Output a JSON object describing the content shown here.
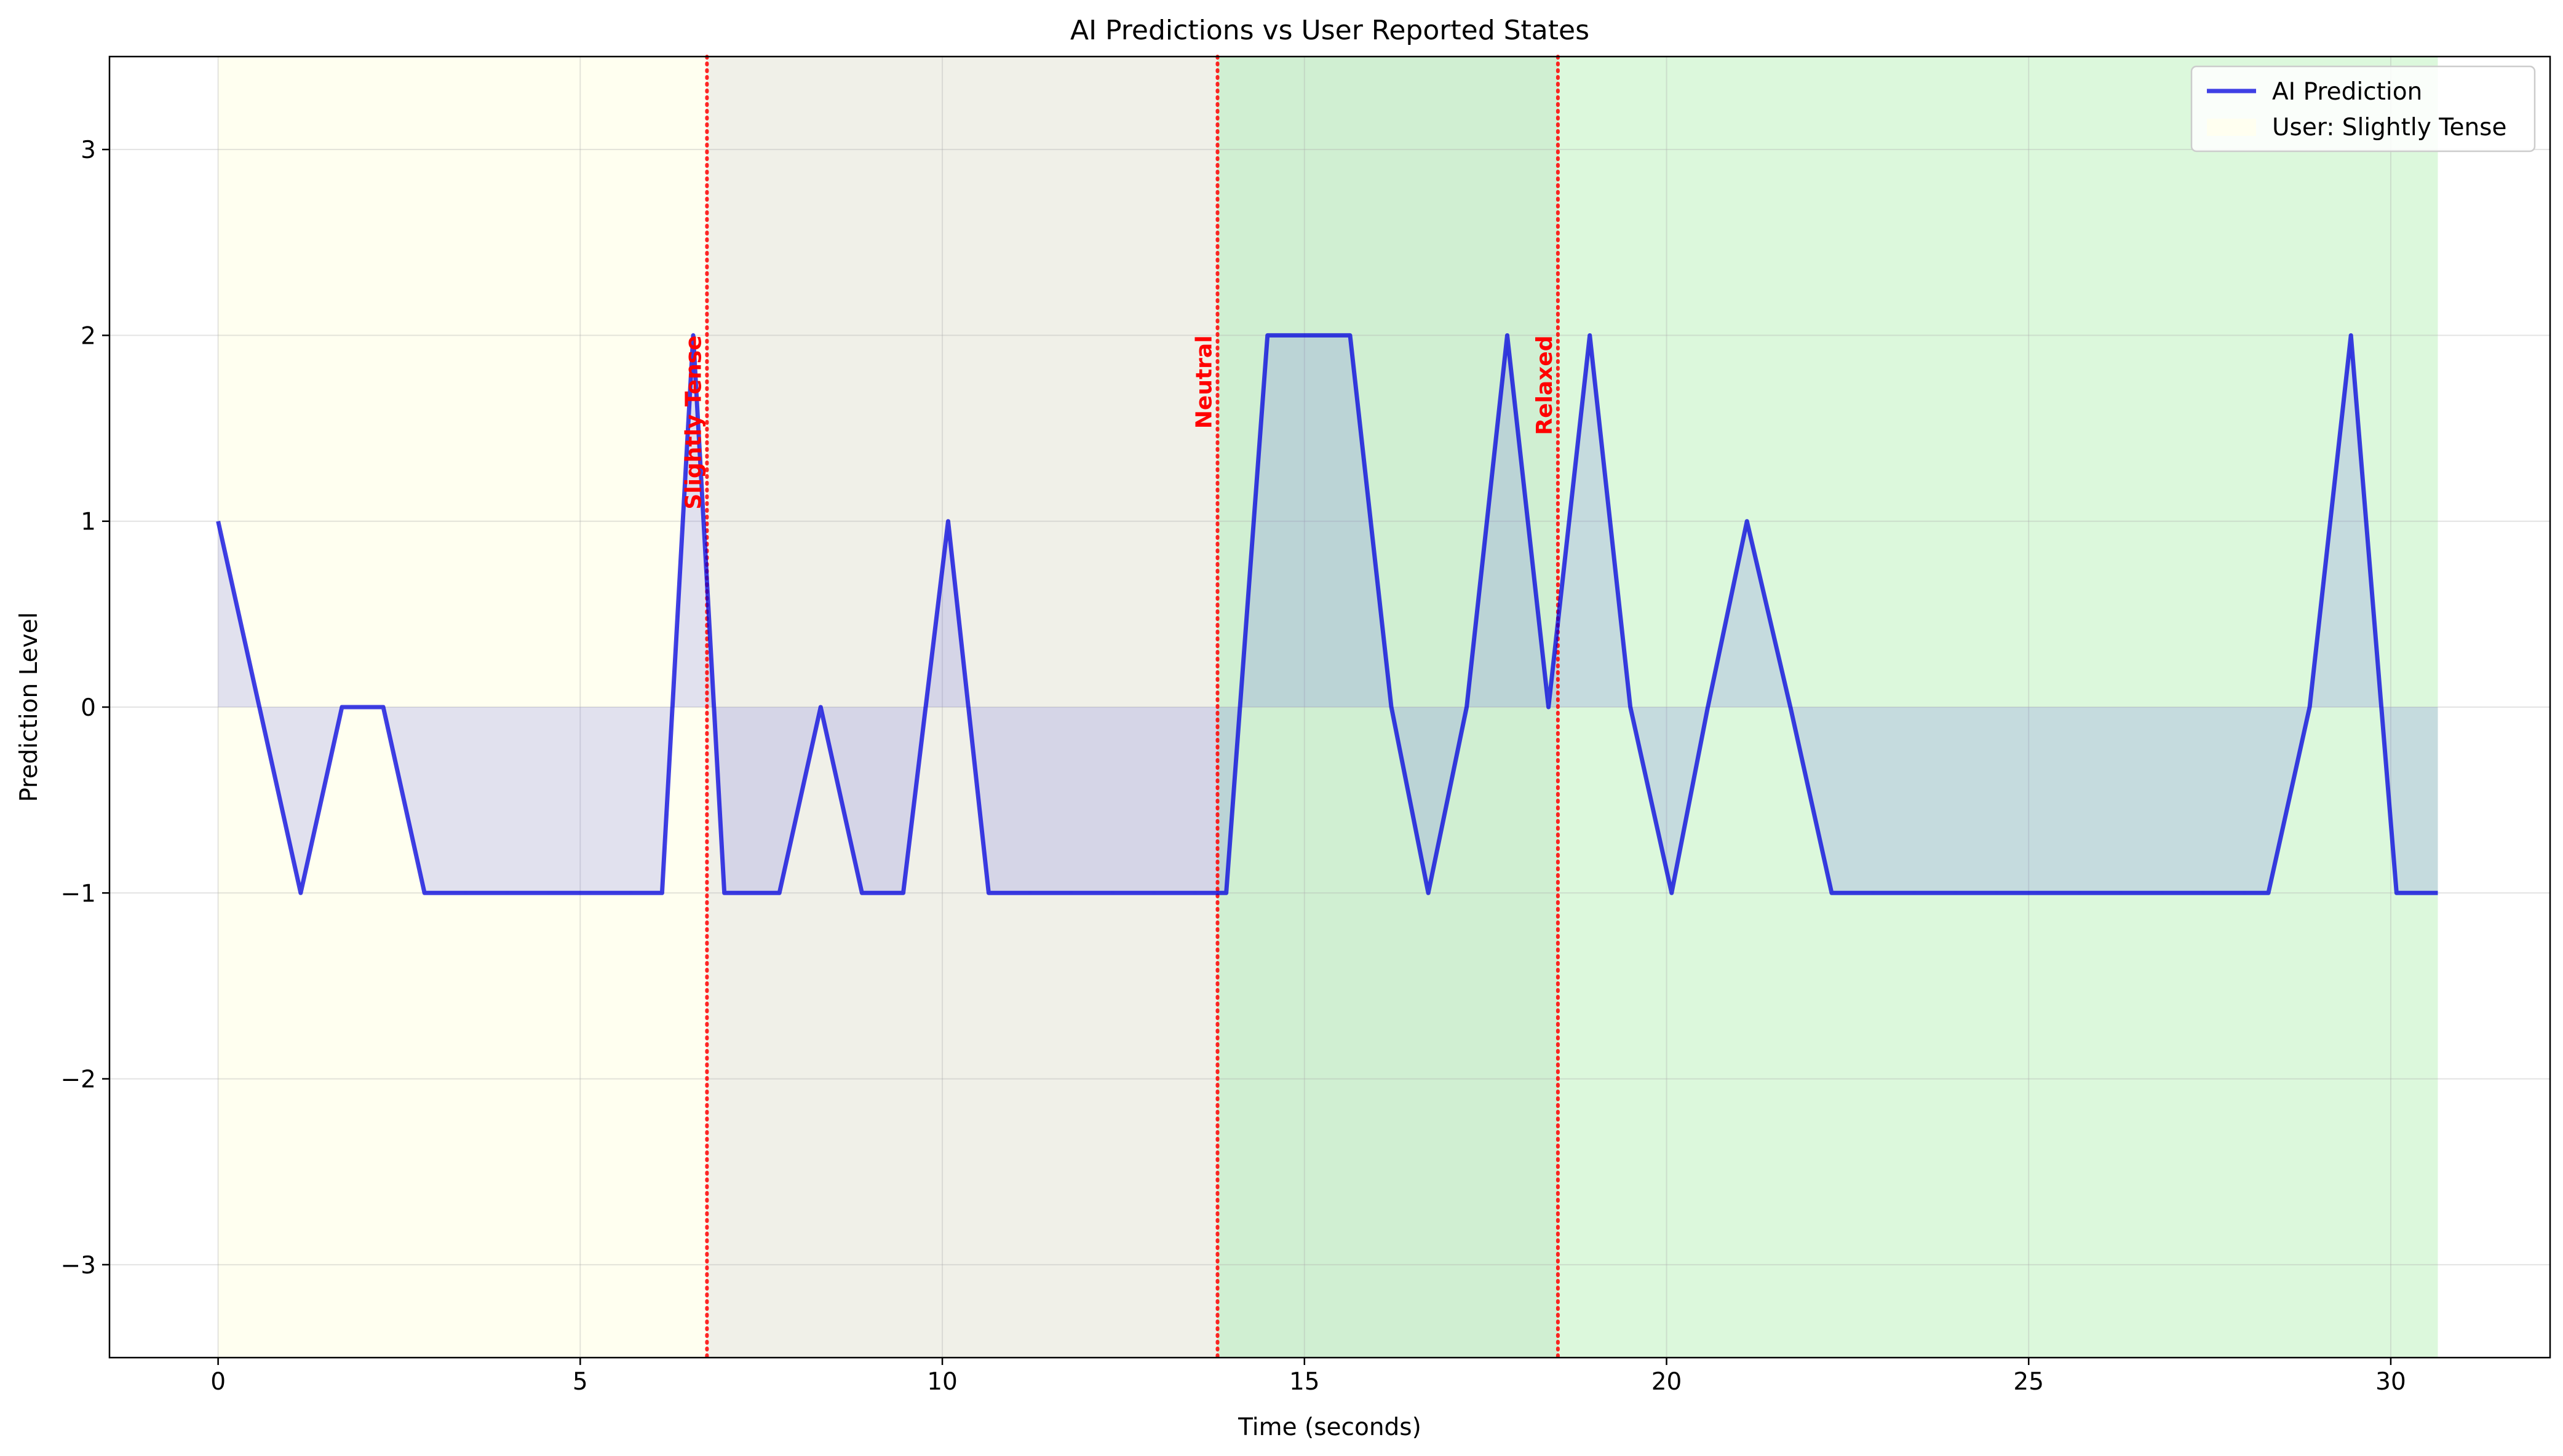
{
  "chart_data": {
    "type": "line",
    "title": "AI Predictions vs User Reported States",
    "xlabel": "Time (seconds)",
    "ylabel": "Prediction Level",
    "xlim": [
      -1.5,
      32.2
    ],
    "ylim": [
      -3.5,
      3.5
    ],
    "xticks": [
      0,
      5,
      10,
      15,
      20,
      25,
      30
    ],
    "yticks": [
      3,
      2,
      1,
      0,
      -1,
      -2,
      -3
    ],
    "xtick_labels": [
      "0",
      "5",
      "10",
      "15",
      "20",
      "25",
      "30"
    ],
    "ytick_labels": [
      "3",
      "2",
      "1",
      "0",
      "−1",
      "−2",
      "−3"
    ],
    "grid": true,
    "legend_position": "upper right",
    "series": [
      {
        "name": "AI Prediction",
        "color": "#0000dd",
        "fill_color": "#6b6be8",
        "x": [
          0,
          0.57,
          1.14,
          1.71,
          2.28,
          2.85,
          3.42,
          3.99,
          4.56,
          5.13,
          5.7,
          6.13,
          6.56,
          6.99,
          7.18,
          7.75,
          8.32,
          8.89,
          9.46,
          10.08,
          10.64,
          11.21,
          11.78,
          12.35,
          12.92,
          13.49,
          13.92,
          14.49,
          15.06,
          15.63,
          16.2,
          16.71,
          17.24,
          17.8,
          18.37,
          18.94,
          19.5,
          20.07,
          20.57,
          21.11,
          21.71,
          22.28,
          22.85,
          23.42,
          23.99,
          24.56,
          25.13,
          25.7,
          26.27,
          26.84,
          27.41,
          27.98,
          28.31,
          28.88,
          29.45,
          30.08,
          30.65
        ],
        "y": [
          1,
          0,
          -1,
          0,
          0,
          -1,
          -1,
          -1,
          -1,
          -1,
          -1,
          -1,
          2,
          -1,
          -1,
          -1,
          0,
          -1,
          -1,
          1,
          -1,
          -1,
          -1,
          -1,
          -1,
          -1,
          -1,
          2,
          2,
          2,
          0,
          -1,
          0,
          2,
          0,
          2,
          0,
          -1,
          0,
          1,
          0,
          -1,
          -1,
          -1,
          -1,
          -1,
          -1,
          -1,
          -1,
          -1,
          -1,
          -1,
          -1,
          0,
          2,
          -1,
          -1
        ]
      }
    ],
    "legend_entries": [
      "AI Prediction",
      "User: Slightly Tense"
    ],
    "background_regions": [
      {
        "x_start": 0,
        "x_end": 6.75,
        "color": "#fffff0"
      },
      {
        "x_start": 6.75,
        "x_end": 13.8,
        "color": "#f0f0e8"
      },
      {
        "x_start": 13.8,
        "x_end": 18.5,
        "color": "#d0efd2"
      },
      {
        "x_start": 18.5,
        "x_end": 30.65,
        "color": "#dcf8dc"
      }
    ],
    "annotations": [
      {
        "text": "Slightly Tense",
        "x": 6.75
      },
      {
        "text": "Neutral",
        "x": 13.8
      },
      {
        "text": "Relaxed",
        "x": 18.5
      }
    ],
    "annotation_color": "#ff0000"
  }
}
